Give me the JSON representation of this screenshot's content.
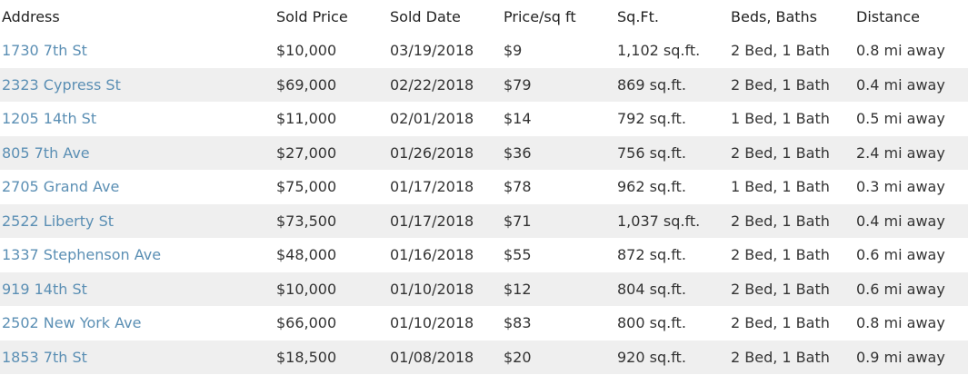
{
  "table": {
    "header": [
      "Address",
      "Sold Price",
      "Sold Date",
      "Price/sq ft",
      "Sq.Ft.",
      "Beds, Baths",
      "Distance"
    ],
    "rows": [
      [
        "1730 7th St",
        "$10,000",
        "03/19/2018",
        "$9",
        "1,102 sq.ft.",
        "2 Bed, 1 Bath",
        "0.8 mi away"
      ],
      [
        "2323 Cypress St",
        "$69,000",
        "02/22/2018",
        "$79",
        "869 sq.ft.",
        "2 Bed, 1 Bath",
        "0.4 mi away"
      ],
      [
        "1205 14th St",
        "$11,000",
        "02/01/2018",
        "$14",
        "792 sq.ft.",
        "1 Bed, 1 Bath",
        "0.5 mi away"
      ],
      [
        "805 7th Ave",
        "$27,000",
        "01/26/2018",
        "$36",
        "756 sq.ft.",
        "2 Bed, 1 Bath",
        "2.4 mi away"
      ],
      [
        "2705 Grand Ave",
        "$75,000",
        "01/17/2018",
        "$78",
        "962 sq.ft.",
        "1 Bed, 1 Bath",
        "0.3 mi away"
      ],
      [
        "2522 Liberty St",
        "$73,500",
        "01/17/2018",
        "$71",
        "1,037 sq.ft.",
        "2 Bed, 1 Bath",
        "0.4 mi away"
      ],
      [
        "1337 Stephenson Ave",
        "$48,000",
        "01/16/2018",
        "$55",
        "872 sq.ft.",
        "2 Bed, 1 Bath",
        "0.6 mi away"
      ],
      [
        "919 14th St",
        "$10,000",
        "01/10/2018",
        "$12",
        "804 sq.ft.",
        "2 Bed, 1 Bath",
        "0.6 mi away"
      ],
      [
        "2502 New York Ave",
        "$66,000",
        "01/10/2018",
        "$83",
        "800 sq.ft.",
        "2 Bed, 1 Bath",
        "0.8 mi away"
      ],
      [
        "1853 7th St",
        "$18,500",
        "01/08/2018",
        "$20",
        "920 sq.ft.",
        "2 Bed, 1 Bath",
        "0.9 mi away"
      ]
    ]
  }
}
